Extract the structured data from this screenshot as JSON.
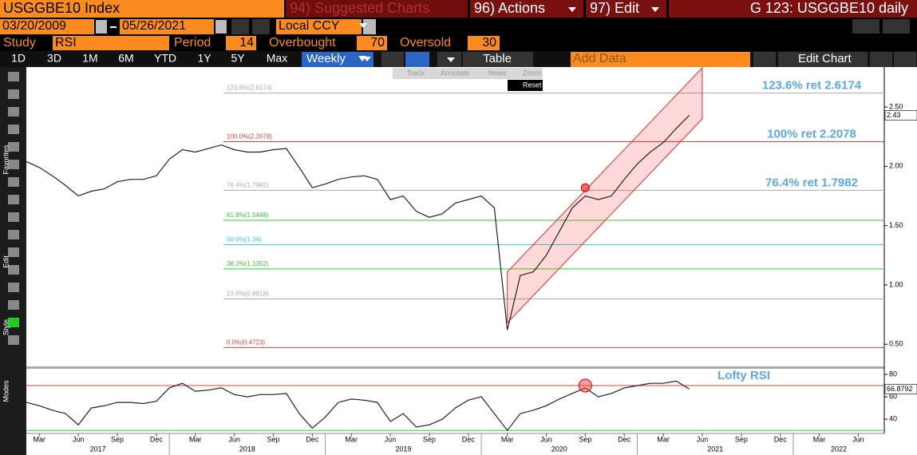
{
  "toolbar": {
    "ticker": "USGGBE10 Index",
    "menu": [
      "94) Suggested Charts",
      "96) Actions",
      "97) Edit"
    ],
    "title": "G 123: USGGBE10 daily",
    "start_date": "03/20/2009",
    "end_date": "05/26/2021",
    "currency": "Local CCY",
    "study_label": "Study",
    "study": "RSI",
    "period_label": "Period",
    "period": 14,
    "overbought_label": "Overbought",
    "overbought": 70,
    "oversold_label": "Oversold",
    "oversold": 30,
    "ranges": [
      "1D",
      "3D",
      "1M",
      "6M",
      "YTD",
      "1Y",
      "5Y",
      "Max"
    ],
    "frequency": "Weekly",
    "table": "Table",
    "add_data": "Add Data",
    "edit_chart": "Edit Chart",
    "tabs": [
      "Track",
      "Annotate",
      "News",
      "Zoom"
    ],
    "reset": "Reset",
    "sidebar": [
      "Favorites",
      "Edit",
      "Style",
      "Modes"
    ]
  },
  "chart_data": [
    {
      "type": "line",
      "color": "#222222",
      "x": [
        "2017-02",
        "2017-03",
        "2017-04",
        "2017-05",
        "2017-06",
        "2017-07",
        "2017-08",
        "2017-09",
        "2017-10",
        "2017-11",
        "2017-12",
        "2018-01",
        "2018-02",
        "2018-03",
        "2018-04",
        "2018-05",
        "2018-06",
        "2018-07",
        "2018-08",
        "2018-09",
        "2018-10",
        "2018-11",
        "2018-12",
        "2019-01",
        "2019-02",
        "2019-03",
        "2019-04",
        "2019-05",
        "2019-06",
        "2019-07",
        "2019-08",
        "2019-09",
        "2019-10",
        "2019-11",
        "2019-12",
        "2020-01",
        "2020-02",
        "2020-03",
        "2020-04",
        "2020-05",
        "2020-06",
        "2020-07",
        "2020-08",
        "2020-09",
        "2020-10",
        "2020-11",
        "2020-12",
        "2021-01",
        "2021-02",
        "2021-03",
        "2021-04",
        "2021-05"
      ],
      "values": [
        2.04,
        1.99,
        1.92,
        1.84,
        1.75,
        1.79,
        1.81,
        1.87,
        1.89,
        1.89,
        1.92,
        2.06,
        2.14,
        2.12,
        2.15,
        2.18,
        2.14,
        2.12,
        2.12,
        2.14,
        2.15,
        1.99,
        1.82,
        1.85,
        1.89,
        1.91,
        1.92,
        1.89,
        1.72,
        1.75,
        1.62,
        1.57,
        1.6,
        1.69,
        1.72,
        1.75,
        1.65,
        0.62,
        1.08,
        1.11,
        1.25,
        1.45,
        1.65,
        1.75,
        1.72,
        1.75,
        1.89,
        2.02,
        2.12,
        2.2,
        2.32,
        2.43
      ],
      "last_value_label": "2.43",
      "xlim": [
        "2017-02",
        "2022-08"
      ],
      "ylim": [
        0.32,
        2.83
      ],
      "yticks": [
        {
          "value": 0.5,
          "label": "0.50"
        },
        {
          "value": 1.0,
          "label": "1.00"
        },
        {
          "value": 1.5,
          "label": "1.50"
        },
        {
          "value": 2.0,
          "label": "2.00"
        },
        {
          "value": 2.5,
          "label": "2.50"
        }
      ],
      "fib_levels": [
        {
          "label": "123.6%(2.6174)",
          "value": 2.6174,
          "color": "#aaaaaa"
        },
        {
          "label": "100.0%(2.2078)",
          "value": 2.2078,
          "color": "#e04040"
        },
        {
          "label": "76.4%(1.7982)",
          "value": 1.7982,
          "color": "#aaaaaa"
        },
        {
          "label": "61.8%(1.5448)",
          "value": 1.5448,
          "color": "#33cc33"
        },
        {
          "label": "50.0%(1.34)",
          "value": 1.34,
          "color": "#33cccc"
        },
        {
          "label": "38.2%(1.1352)",
          "value": 1.1352,
          "color": "#33cc33"
        },
        {
          "label": "23.6%(0.8818)",
          "value": 0.8818,
          "color": "#aaaaaa"
        },
        {
          "label": "0.0%(0.4723)",
          "value": 0.4723,
          "color": "#e04040"
        }
      ],
      "annotations": [
        {
          "text": "123.6% ret 2.6174",
          "value": 2.6174
        },
        {
          "text": "100% ret 2.2078",
          "value": 2.2078
        },
        {
          "text": "76.4% ret 1.7982",
          "value": 1.7982
        }
      ],
      "channel": {
        "x": [
          "2020-03",
          "2021-06"
        ],
        "upper": [
          1.11,
          2.83
        ],
        "lower": [
          0.68,
          2.4
        ]
      },
      "highlight": {
        "x": "2020-09",
        "value": 1.82
      }
    },
    {
      "type": "line",
      "color": "#222222",
      "x": [
        "2017-02",
        "2017-03",
        "2017-04",
        "2017-05",
        "2017-06",
        "2017-07",
        "2017-08",
        "2017-09",
        "2017-10",
        "2017-11",
        "2017-12",
        "2018-01",
        "2018-02",
        "2018-03",
        "2018-04",
        "2018-05",
        "2018-06",
        "2018-07",
        "2018-08",
        "2018-09",
        "2018-10",
        "2018-11",
        "2018-12",
        "2019-01",
        "2019-02",
        "2019-03",
        "2019-04",
        "2019-05",
        "2019-06",
        "2019-07",
        "2019-08",
        "2019-09",
        "2019-10",
        "2019-11",
        "2019-12",
        "2020-01",
        "2020-02",
        "2020-03",
        "2020-04",
        "2020-05",
        "2020-06",
        "2020-07",
        "2020-08",
        "2020-09",
        "2020-10",
        "2020-11",
        "2020-12",
        "2021-01",
        "2021-02",
        "2021-03",
        "2021-04",
        "2021-05"
      ],
      "values": [
        55,
        52,
        48,
        45,
        35,
        50,
        52,
        55,
        55,
        54,
        56,
        68,
        72,
        65,
        66,
        68,
        62,
        60,
        62,
        62,
        63,
        45,
        32,
        42,
        55,
        58,
        57,
        55,
        38,
        45,
        33,
        35,
        40,
        50,
        57,
        60,
        45,
        30,
        45,
        48,
        52,
        58,
        63,
        68,
        60,
        63,
        68,
        70,
        72,
        72,
        74,
        66.8792
      ],
      "last_value_label": "66.8792",
      "xlim": [
        "2017-02",
        "2022-08"
      ],
      "ylim": [
        28,
        85
      ],
      "yticks": [
        40,
        60,
        80
      ],
      "annotations": [
        {
          "text": "Lofty RSI"
        }
      ],
      "highlight": {
        "x": "2020-09",
        "value": 70
      },
      "xticks": [
        {
          "value": "2017-03",
          "label": "Mar"
        },
        {
          "value": "2017-06",
          "label": "Jun"
        },
        {
          "value": "2017-09",
          "label": "Sep"
        },
        {
          "value": "2017-12",
          "label": "Dec"
        },
        {
          "value": "2018-03",
          "label": "Mar"
        },
        {
          "value": "2018-06",
          "label": "Jun"
        },
        {
          "value": "2018-09",
          "label": "Sep"
        },
        {
          "value": "2018-12",
          "label": "Dec"
        },
        {
          "value": "2019-03",
          "label": "Mar"
        },
        {
          "value": "2019-06",
          "label": "Jun"
        },
        {
          "value": "2019-09",
          "label": "Sep"
        },
        {
          "value": "2019-12",
          "label": "Dec"
        },
        {
          "value": "2020-03",
          "label": "Mar"
        },
        {
          "value": "2020-06",
          "label": "Jun"
        },
        {
          "value": "2020-09",
          "label": "Sep"
        },
        {
          "value": "2020-12",
          "label": "Dec"
        },
        {
          "value": "2021-03",
          "label": "Mar"
        },
        {
          "value": "2021-06",
          "label": "Jun"
        },
        {
          "value": "2021-09",
          "label": "Sep"
        },
        {
          "value": "2021-12",
          "label": "Dec"
        },
        {
          "value": "2022-03",
          "label": "Mar"
        },
        {
          "value": "2022-06",
          "label": "Jun"
        }
      ],
      "year_labels": [
        2017,
        2018,
        2019,
        2020,
        2021,
        2022
      ]
    }
  ]
}
